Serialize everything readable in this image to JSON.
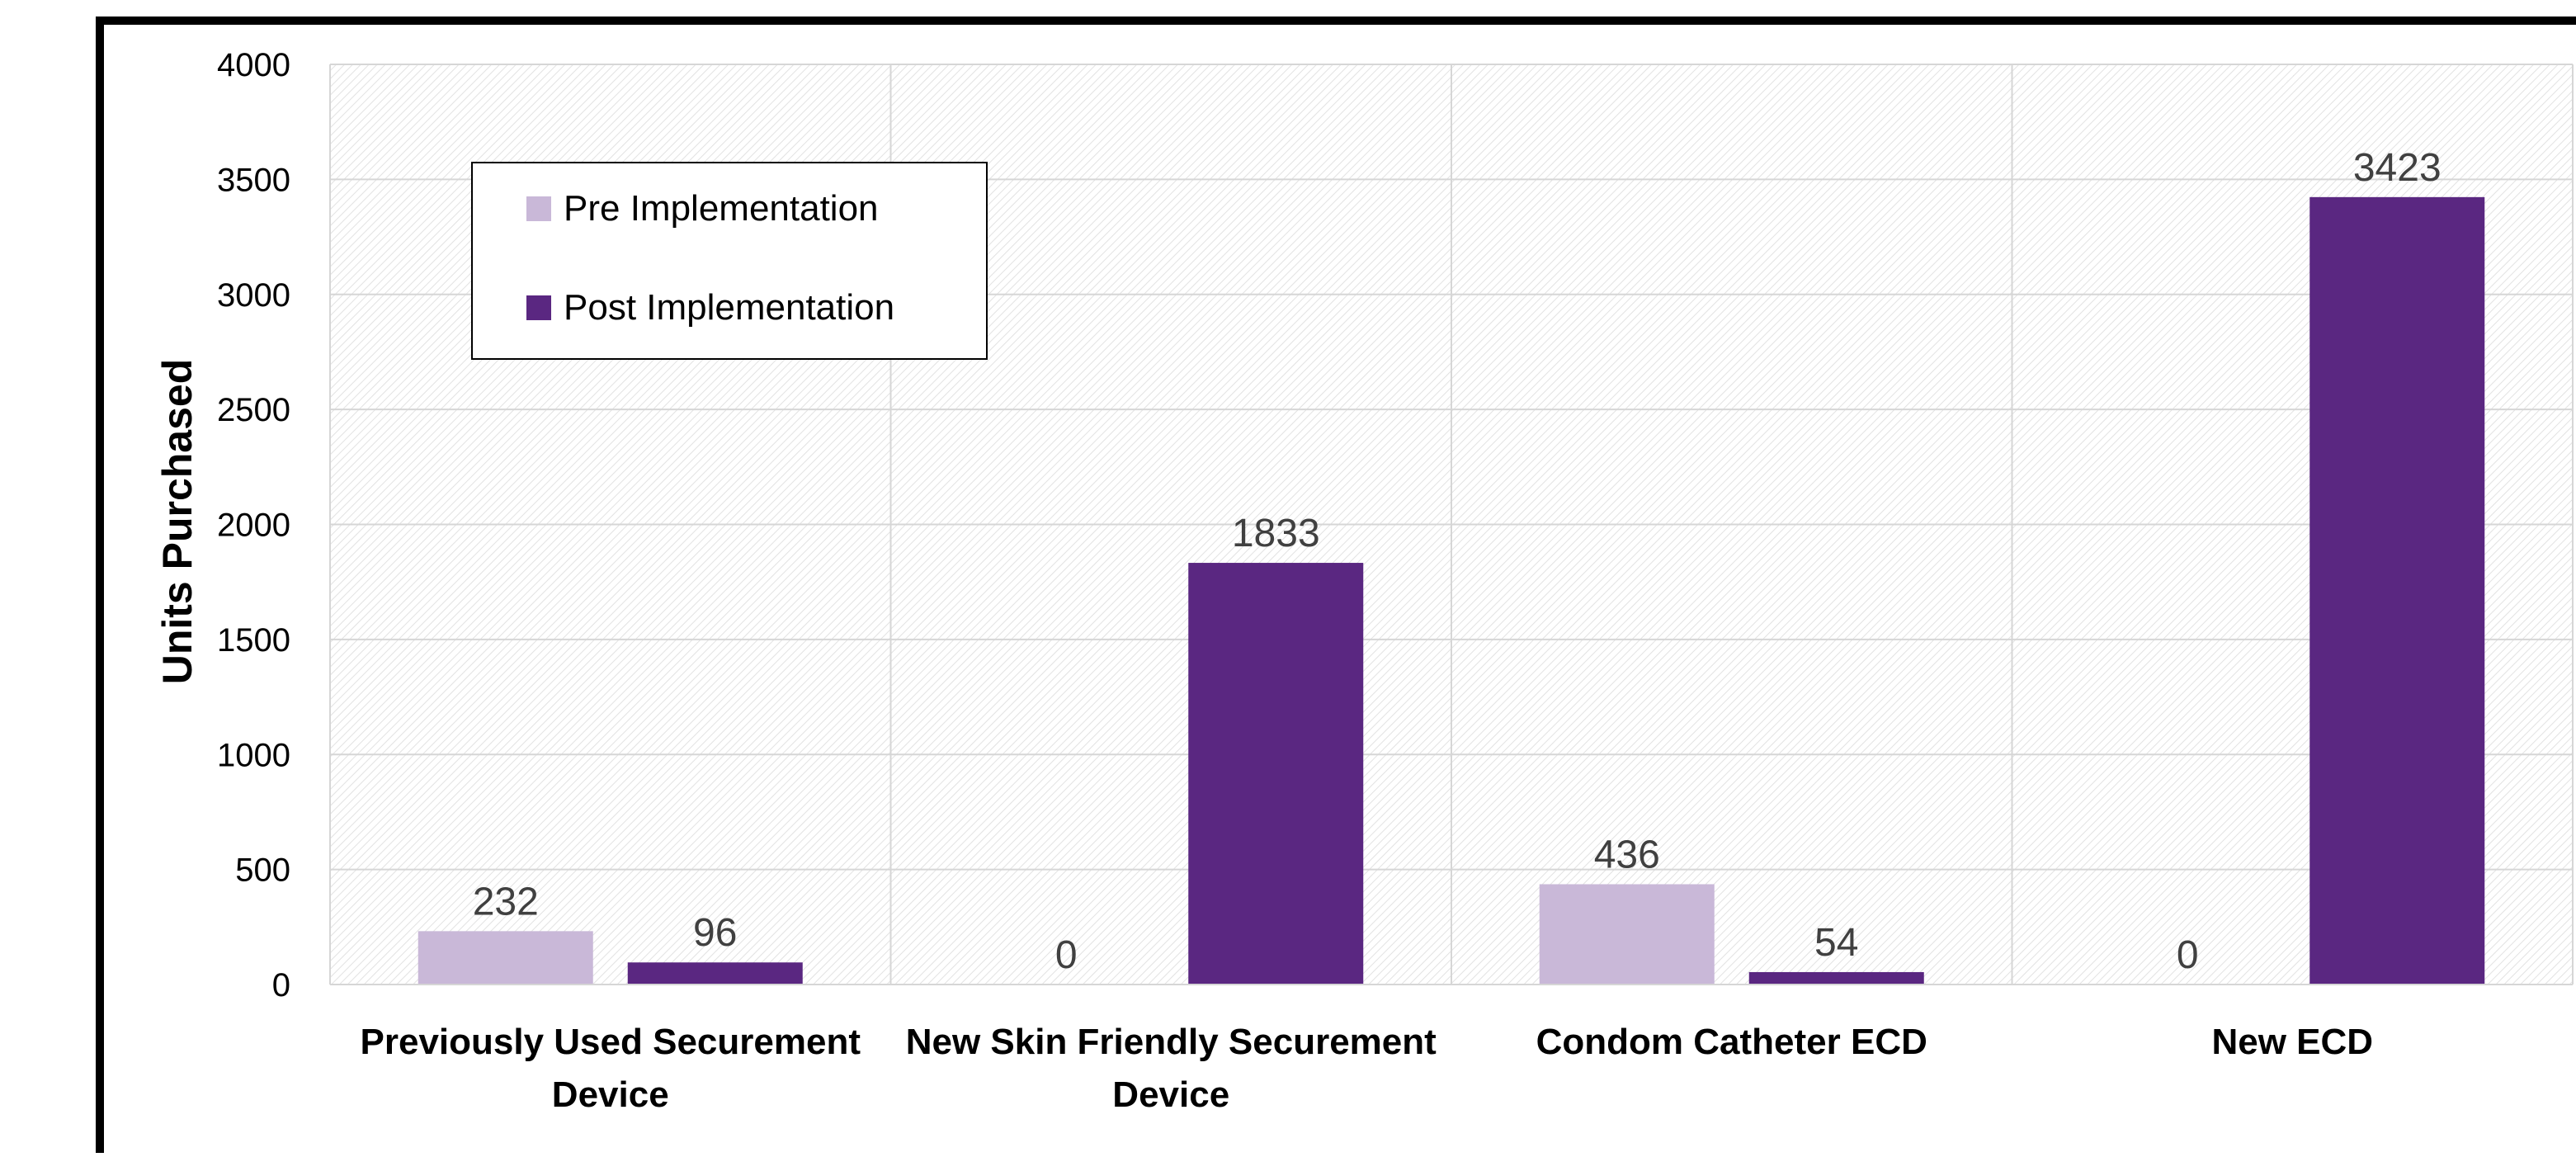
{
  "chart_data": {
    "type": "bar",
    "title": "",
    "xlabel": "",
    "ylabel": "Units Purchased",
    "ylim": [
      0,
      4000
    ],
    "yticks": [
      0,
      500,
      1000,
      1500,
      2000,
      2500,
      3000,
      3500,
      4000
    ],
    "categories": [
      [
        "Previously Used Securement",
        "Device"
      ],
      [
        "New Skin Friendly Securement",
        "Device"
      ],
      [
        "Condom Catheter ECD"
      ],
      [
        "New ECD"
      ]
    ],
    "series": [
      {
        "name": "Pre Implementation",
        "color": "#c9b8d8",
        "values": [
          232,
          0,
          436,
          0
        ]
      },
      {
        "name": "Post Implementation",
        "color": "#5a2781",
        "values": [
          96,
          1833,
          54,
          3423
        ]
      }
    ],
    "data_labels": true,
    "grid": true,
    "legend_position": "top-left"
  }
}
